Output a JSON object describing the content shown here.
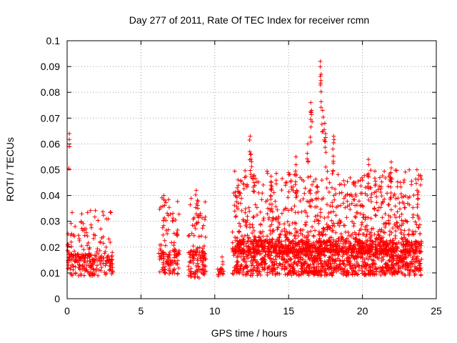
{
  "chart_data": {
    "type": "scatter",
    "title": "Day 277 of 2011, Rate Of TEC Index for receiver rcmn",
    "xlabel": "GPS time / hours",
    "ylabel": "ROTI / TECUs",
    "xlim": [
      0,
      25
    ],
    "ylim": [
      0,
      0.1
    ],
    "x_ticks": [
      "0",
      "5",
      "10",
      "15",
      "20",
      "25"
    ],
    "y_ticks": [
      "0",
      "0.01",
      "0.02",
      "0.03",
      "0.04",
      "0.05",
      "0.06",
      "0.07",
      "0.08",
      "0.09",
      "0.1"
    ],
    "grid": true,
    "legend": "none",
    "marker": "+",
    "series_color": "#ff0000",
    "segments": [
      {
        "x_start": 0.0,
        "x_end": 3.1,
        "y_low": 0.005,
        "y_high": 0.035,
        "count": 260
      },
      {
        "x_start": 6.2,
        "x_end": 7.6,
        "y_low": 0.005,
        "y_high": 0.04,
        "count": 130
      },
      {
        "x_start": 8.2,
        "x_end": 9.4,
        "y_low": 0.003,
        "y_high": 0.042,
        "count": 130
      },
      {
        "x_start": 10.2,
        "x_end": 10.6,
        "y_low": 0.007,
        "y_high": 0.018,
        "count": 20
      },
      {
        "x_start": 11.2,
        "x_end": 24.0,
        "y_low": 0.003,
        "y_high": 0.05,
        "count": 2400
      }
    ],
    "peaks": [
      {
        "x": 0.15,
        "y": 0.064
      },
      {
        "x": 6.55,
        "y": 0.04
      },
      {
        "x": 8.75,
        "y": 0.042
      },
      {
        "x": 11.6,
        "y": 0.044
      },
      {
        "x": 12.4,
        "y": 0.063
      },
      {
        "x": 12.45,
        "y": 0.056
      },
      {
        "x": 13.8,
        "y": 0.044
      },
      {
        "x": 15.5,
        "y": 0.055
      },
      {
        "x": 16.3,
        "y": 0.06
      },
      {
        "x": 16.5,
        "y": 0.076
      },
      {
        "x": 16.55,
        "y": 0.073
      },
      {
        "x": 17.15,
        "y": 0.092
      },
      {
        "x": 17.2,
        "y": 0.087
      },
      {
        "x": 17.3,
        "y": 0.073
      },
      {
        "x": 17.45,
        "y": 0.068
      },
      {
        "x": 17.5,
        "y": 0.064
      },
      {
        "x": 18.05,
        "y": 0.063
      },
      {
        "x": 18.0,
        "y": 0.058
      },
      {
        "x": 20.4,
        "y": 0.054
      },
      {
        "x": 20.35,
        "y": 0.048
      },
      {
        "x": 21.95,
        "y": 0.053
      },
      {
        "x": 21.9,
        "y": 0.047
      },
      {
        "x": 23.7,
        "y": 0.042
      }
    ]
  }
}
